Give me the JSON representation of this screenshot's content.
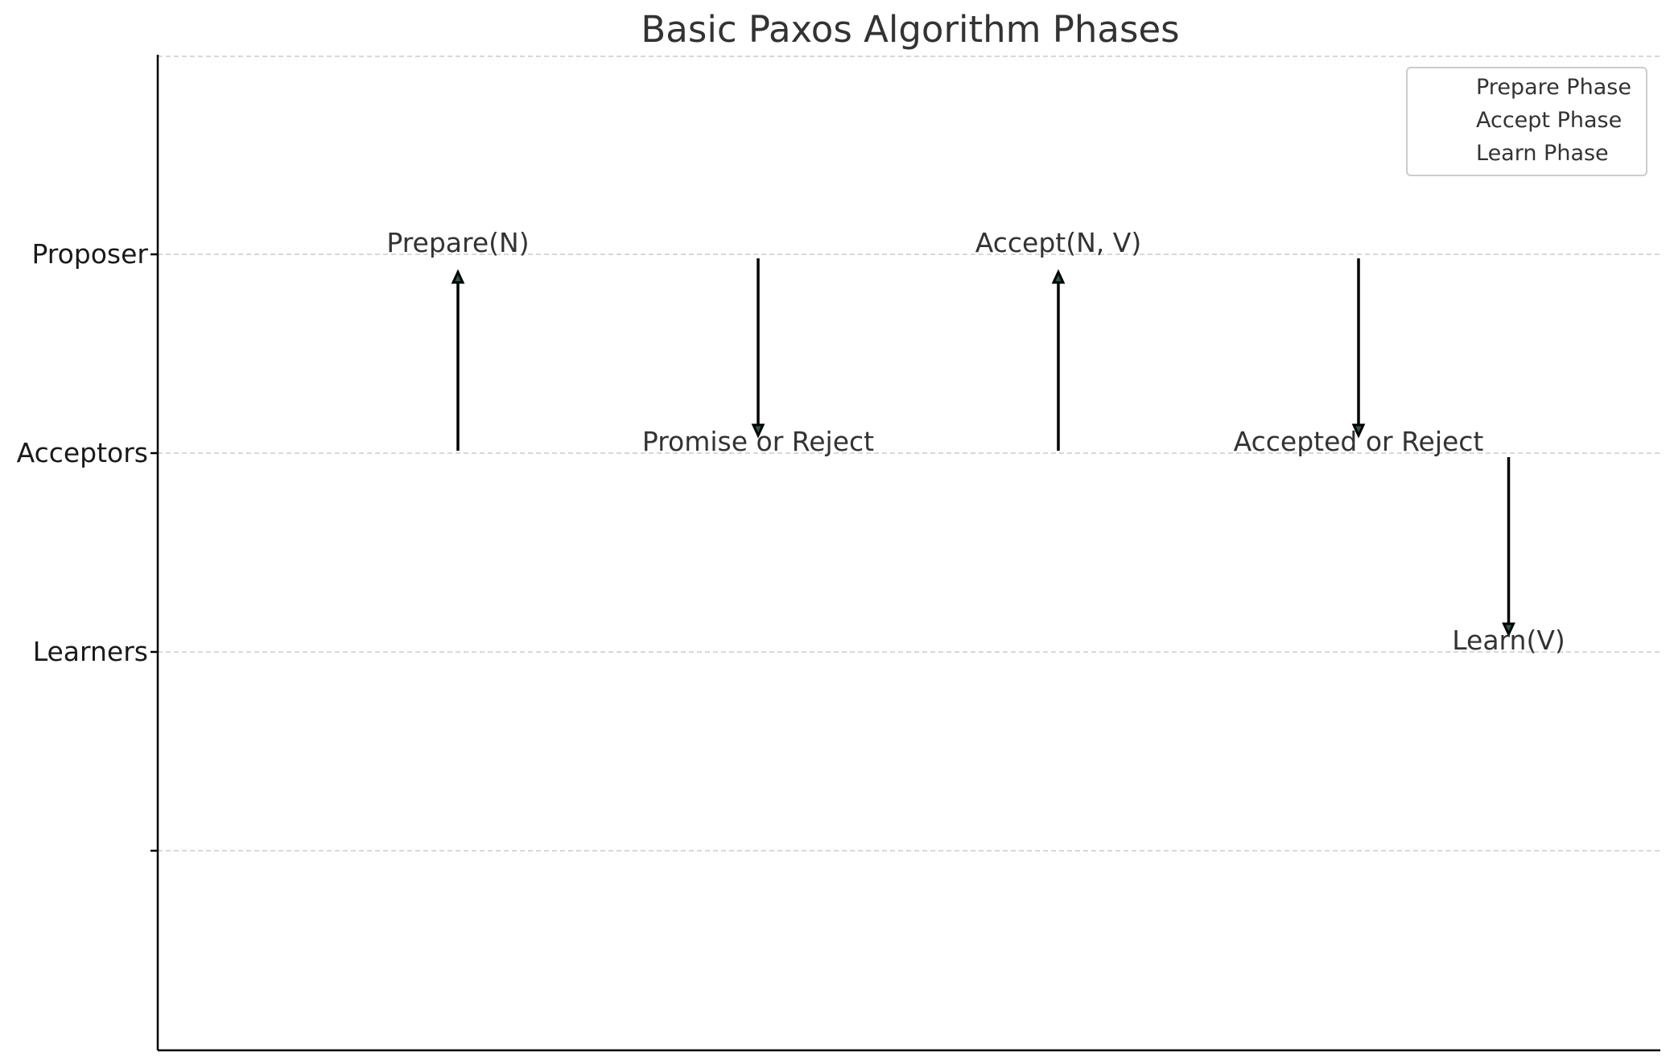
{
  "chart_data": {
    "type": "diagram",
    "title": "Basic Paxos Algorithm Phases",
    "y_tick_labels": [
      "Proposer",
      "Acceptors",
      "Learners",
      ""
    ],
    "grid": true,
    "legend": {
      "placement": "top-right",
      "entries": [
        "Prepare Phase",
        "Accept Phase",
        "Learn Phase"
      ]
    },
    "messages": [
      {
        "label": "Prepare(N)",
        "x": 1,
        "from": "Acceptors",
        "to": "Proposer",
        "label_at": "Proposer"
      },
      {
        "label": "Promise or Reject",
        "x": 2,
        "from": "Proposer",
        "to": "Acceptors",
        "label_at": "Acceptors"
      },
      {
        "label": "Accept(N, V)",
        "x": 3,
        "from": "Acceptors",
        "to": "Proposer",
        "label_at": "Proposer"
      },
      {
        "label": "Accepted or Reject",
        "x": 4,
        "from": "Proposer",
        "to": "Acceptors",
        "label_at": "Acceptors"
      },
      {
        "label": "Learn(V)",
        "x": 4.5,
        "from": "Acceptors",
        "to": "Learners",
        "label_at": "Learners"
      }
    ]
  }
}
